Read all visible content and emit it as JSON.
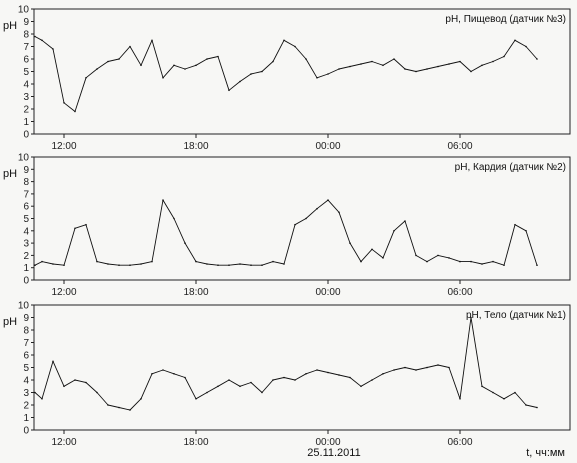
{
  "x_axis": {
    "tick_labels": [
      "12:00",
      "18:00",
      "00:00",
      "06:00"
    ],
    "date_label": "25.11.2011",
    "unit_label": "t, чч:мм"
  },
  "chart_data": [
    {
      "type": "line",
      "title": "pH, Пищевод (датчик №3)",
      "ylabel": "pH",
      "ylim": [
        0,
        10
      ],
      "yticks": [
        0,
        1,
        2,
        3,
        4,
        5,
        6,
        7,
        8,
        9,
        10
      ],
      "x_hours": [
        "10:30",
        "11:00",
        "11:30",
        "12:00",
        "12:30",
        "13:00",
        "13:30",
        "14:00",
        "14:30",
        "15:00",
        "15:30",
        "16:00",
        "16:30",
        "17:00",
        "17:30",
        "18:00",
        "18:30",
        "19:00",
        "19:30",
        "20:00",
        "20:30",
        "21:00",
        "21:30",
        "22:00",
        "22:30",
        "23:00",
        "23:30",
        "00:00",
        "00:30",
        "01:00",
        "01:30",
        "02:00",
        "02:30",
        "03:00",
        "03:30",
        "04:00",
        "04:30",
        "05:00",
        "05:30",
        "06:00",
        "06:30",
        "07:00",
        "07:30",
        "08:00",
        "08:30",
        "09:00",
        "09:30"
      ],
      "series": [
        {
          "values": [
            7.8,
            7.5,
            6.8,
            2.5,
            1.8,
            4.5,
            5.2,
            5.8,
            6.0,
            7.0,
            5.5,
            7.5,
            4.5,
            5.5,
            5.2,
            5.5,
            6.0,
            6.2,
            3.5,
            4.2,
            4.8,
            5.0,
            5.8,
            7.5,
            7.0,
            6.0,
            4.5,
            4.8,
            5.2,
            5.4,
            5.6,
            5.8,
            5.5,
            6.0,
            5.2,
            5.0,
            5.2,
            5.4,
            5.6,
            5.8,
            5.0,
            5.5,
            5.8,
            6.2,
            7.5,
            7.0,
            6.0
          ]
        }
      ]
    },
    {
      "type": "line",
      "title": "pH, Кардия (датчик №2)",
      "ylabel": "pH",
      "ylim": [
        0,
        10
      ],
      "yticks": [
        0,
        1,
        2,
        3,
        4,
        5,
        6,
        7,
        8,
        9,
        10
      ],
      "x_hours": [
        "10:30",
        "11:00",
        "11:30",
        "12:00",
        "12:30",
        "13:00",
        "13:30",
        "14:00",
        "14:30",
        "15:00",
        "15:30",
        "16:00",
        "16:30",
        "17:00",
        "17:30",
        "18:00",
        "18:30",
        "19:00",
        "19:30",
        "20:00",
        "20:30",
        "21:00",
        "21:30",
        "22:00",
        "22:30",
        "23:00",
        "23:30",
        "00:00",
        "00:30",
        "01:00",
        "01:30",
        "02:00",
        "02:30",
        "03:00",
        "03:30",
        "04:00",
        "04:30",
        "05:00",
        "05:30",
        "06:00",
        "06:30",
        "07:00",
        "07:30",
        "08:00",
        "08:30",
        "09:00",
        "09:30"
      ],
      "series": [
        {
          "values": [
            1.2,
            1.5,
            1.3,
            1.2,
            4.2,
            4.5,
            1.5,
            1.3,
            1.2,
            1.2,
            1.3,
            1.5,
            6.5,
            5.0,
            3.0,
            1.5,
            1.3,
            1.2,
            1.2,
            1.3,
            1.2,
            1.2,
            1.5,
            1.3,
            4.5,
            5.0,
            5.8,
            6.5,
            5.5,
            3.0,
            1.5,
            2.5,
            1.8,
            4.0,
            4.8,
            2.0,
            1.5,
            2.0,
            1.8,
            1.5,
            1.5,
            1.3,
            1.5,
            1.2,
            4.5,
            4.0,
            1.2
          ]
        }
      ]
    },
    {
      "type": "line",
      "title": "pH, Тело (датчик №1)",
      "ylabel": "pH",
      "ylim": [
        0,
        10
      ],
      "yticks": [
        0,
        1,
        2,
        3,
        4,
        5,
        6,
        7,
        8,
        9,
        10
      ],
      "x_hours": [
        "10:30",
        "11:00",
        "11:30",
        "12:00",
        "12:30",
        "13:00",
        "13:30",
        "14:00",
        "14:30",
        "15:00",
        "15:30",
        "16:00",
        "16:30",
        "17:00",
        "17:30",
        "18:00",
        "18:30",
        "19:00",
        "19:30",
        "20:00",
        "20:30",
        "21:00",
        "21:30",
        "22:00",
        "22:30",
        "23:00",
        "23:30",
        "00:00",
        "00:30",
        "01:00",
        "01:30",
        "02:00",
        "02:30",
        "03:00",
        "03:30",
        "04:00",
        "04:30",
        "05:00",
        "05:30",
        "06:00",
        "06:30",
        "07:00",
        "07:30",
        "08:00",
        "08:30",
        "09:00",
        "09:30"
      ],
      "series": [
        {
          "values": [
            3.0,
            2.5,
            5.5,
            3.5,
            4.0,
            3.8,
            3.0,
            2.0,
            1.8,
            1.6,
            2.5,
            4.5,
            4.8,
            4.5,
            4.2,
            2.5,
            3.0,
            3.5,
            4.0,
            3.5,
            3.8,
            3.0,
            4.0,
            4.2,
            4.0,
            4.5,
            4.8,
            4.6,
            4.4,
            4.2,
            3.5,
            4.0,
            4.5,
            4.8,
            5.0,
            4.8,
            5.0,
            5.2,
            5.0,
            2.5,
            9.0,
            3.5,
            3.0,
            2.5,
            3.0,
            2.0,
            1.8
          ]
        }
      ]
    }
  ]
}
